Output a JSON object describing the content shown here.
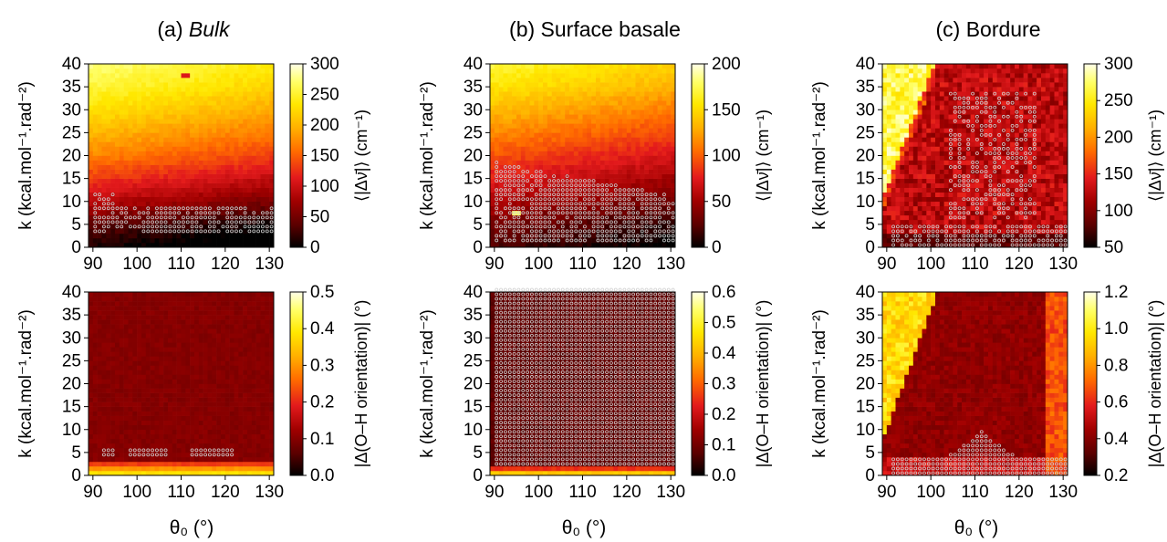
{
  "columns": [
    {
      "prefix": "(a) ",
      "name": "Bulk",
      "italic": true
    },
    {
      "prefix": "(b) ",
      "name": "Surface basale",
      "italic": false
    },
    {
      "prefix": "(c) ",
      "name": "Bordure",
      "italic": false
    }
  ],
  "axis_labels": {
    "x": "θ₀ (°)",
    "y": "k (kcal.mol⁻¹.rad⁻²)",
    "colorbar_top": "⟨|Δν̄|⟩ (cm⁻¹)",
    "colorbar_bottom": "|Δ(O–H orientation)| (°)"
  },
  "colors": {
    "colormap": [
      "#000000",
      "#5a0000",
      "#a00000",
      "#e31a1c",
      "#ff6a00",
      "#ffb000",
      "#ffe800",
      "#ffff66",
      "#ffffe8"
    ],
    "marker": "#cfcfcf"
  },
  "chart_data": [
    {
      "id": "a-top",
      "type": "heatmap",
      "title": "(a) Bulk",
      "xlabel": "θ₀ (°)",
      "ylabel": "k (kcal.mol⁻¹.rad⁻²)",
      "colorbar_label": "⟨|Δν̄|⟩ (cm⁻¹)",
      "xlim": [
        89,
        131
      ],
      "ylim": [
        0,
        40
      ],
      "x_ticks": [
        90,
        100,
        110,
        120,
        130
      ],
      "y_ticks": [
        0,
        5,
        10,
        15,
        20,
        25,
        30,
        35,
        40
      ],
      "color_range": [
        0,
        300
      ],
      "color_ticks": [
        0,
        50,
        100,
        150,
        200,
        250,
        300
      ],
      "value_grid": {
        "k_min": 0,
        "k_max": 40,
        "theta_min": 90,
        "theta_max": 130,
        "k_profile_value": [
          [
            0,
            10
          ],
          [
            5,
            40
          ],
          [
            10,
            90
          ],
          [
            15,
            130
          ],
          [
            20,
            170
          ],
          [
            25,
            200
          ],
          [
            30,
            230
          ],
          [
            35,
            255
          ],
          [
            40,
            275
          ]
        ],
        "theta_shift_per_degree": -0.9
      },
      "outlier": {
        "theta": 111,
        "k": 37.5,
        "value": 110
      },
      "markers": "circles for k ≤ 11 at θ₀ 90–94, k ≤ 8 at larger θ₀"
    },
    {
      "id": "b-top",
      "type": "heatmap",
      "title": "(b) Surface basale",
      "xlabel": "θ₀ (°)",
      "ylabel": "k (kcal.mol⁻¹.rad⁻²)",
      "colorbar_label": "⟨|Δν̄|⟩ (cm⁻¹)",
      "xlim": [
        89,
        131
      ],
      "ylim": [
        0,
        40
      ],
      "x_ticks": [
        90,
        100,
        110,
        120,
        130
      ],
      "y_ticks": [
        0,
        5,
        10,
        15,
        20,
        25,
        30,
        35,
        40
      ],
      "color_range": [
        0,
        200
      ],
      "color_ticks": [
        0,
        50,
        100,
        150,
        200
      ],
      "value_grid": {
        "k_min": 0,
        "k_max": 40,
        "theta_min": 90,
        "theta_max": 130,
        "k_profile_value": [
          [
            0,
            20
          ],
          [
            5,
            35
          ],
          [
            10,
            55
          ],
          [
            15,
            75
          ],
          [
            20,
            95
          ],
          [
            25,
            115
          ],
          [
            30,
            135
          ],
          [
            35,
            155
          ],
          [
            40,
            170
          ]
        ],
        "theta_shift_per_degree": -0.6
      },
      "outlier": {
        "theta": 95,
        "k": 7.5,
        "value": 180
      },
      "markers": "circles for k ≤ 18 at θ₀ 90–94, decreasing to k ≤ 11 at 130"
    },
    {
      "id": "c-top",
      "type": "heatmap",
      "title": "(c) Bordure",
      "xlabel": "θ₀ (°)",
      "ylabel": "k (kcal.mol⁻¹.rad⁻²)",
      "colorbar_label": "⟨|Δν̄|⟩ (cm⁻¹)",
      "xlim": [
        89,
        131
      ],
      "ylim": [
        0,
        40
      ],
      "x_ticks": [
        90,
        100,
        110,
        120,
        130
      ],
      "y_ticks": [
        0,
        5,
        10,
        15,
        20,
        25,
        30,
        35,
        40
      ],
      "color_range": [
        50,
        300
      ],
      "color_ticks": [
        50,
        100,
        150,
        200,
        250,
        300
      ],
      "regions": [
        {
          "description": "bright wedge upper-left",
          "value": 265
        },
        {
          "description": "red interior",
          "value": 120
        },
        {
          "description": "dark base",
          "value": 80
        }
      ],
      "markers": "scattered circles in the central wedge and along k ≤ 4"
    },
    {
      "id": "a-bottom",
      "type": "heatmap",
      "title": "(a) Bulk",
      "xlabel": "θ₀ (°)",
      "ylabel": "k (kcal.mol⁻¹.rad⁻²)",
      "colorbar_label": "|Δ(O–H orientation)| (°)",
      "xlim": [
        89,
        131
      ],
      "ylim": [
        0,
        40
      ],
      "x_ticks": [
        90,
        100,
        110,
        120,
        130
      ],
      "y_ticks": [
        0,
        5,
        10,
        15,
        20,
        25,
        30,
        35,
        40
      ],
      "color_range": [
        0.0,
        0.5
      ],
      "color_ticks": [
        0.0,
        0.1,
        0.2,
        0.3,
        0.4,
        0.5
      ],
      "bands": [
        [
          0,
          1,
          0.38
        ],
        [
          1,
          2,
          0.3
        ],
        [
          2,
          3,
          0.22
        ],
        [
          3,
          40,
          0.1
        ]
      ],
      "markers": "circles along k = 4–5"
    },
    {
      "id": "b-bottom",
      "type": "heatmap",
      "title": "(b) Surface basale",
      "xlabel": "θ₀ (°)",
      "ylabel": "k (kcal.mol⁻¹.rad⁻²)",
      "colorbar_label": "|Δ(O–H orientation)| (°)",
      "xlim": [
        89,
        131
      ],
      "ylim": [
        0,
        40
      ],
      "x_ticks": [
        90,
        100,
        110,
        120,
        130
      ],
      "y_ticks": [
        0,
        5,
        10,
        15,
        20,
        25,
        30,
        35,
        40
      ],
      "color_range": [
        0.0,
        0.6
      ],
      "color_ticks": [
        0.0,
        0.1,
        0.2,
        0.3,
        0.4,
        0.5,
        0.6
      ],
      "bands": [
        [
          0,
          1,
          0.42
        ],
        [
          1,
          2,
          0.25
        ],
        [
          2,
          40,
          0.08
        ]
      ],
      "markers": "circles covering nearly every cell with k ≥ 2"
    },
    {
      "id": "c-bottom",
      "type": "heatmap",
      "title": "(c) Bordure",
      "xlabel": "θ₀ (°)",
      "ylabel": "k (kcal.mol⁻¹.rad⁻²)",
      "colorbar_label": "|Δ(O–H orientation)| (°)",
      "xlim": [
        89,
        131
      ],
      "ylim": [
        0,
        40
      ],
      "x_ticks": [
        90,
        100,
        110,
        120,
        130
      ],
      "y_ticks": [
        0,
        5,
        10,
        15,
        20,
        25,
        30,
        35,
        40
      ],
      "color_range": [
        0.2,
        1.2
      ],
      "color_ticks": [
        0.2,
        0.4,
        0.6,
        0.8,
        1.0,
        1.2
      ],
      "regions": [
        {
          "description": "bright wedge upper-left",
          "value": 0.95
        },
        {
          "description": "dark red interior",
          "value": 0.4
        },
        {
          "description": "orange right edge",
          "value": 0.7
        }
      ],
      "markers": "circles along k ≤ 3 and a small mound up to k ≈ 9 near θ₀ 110–117"
    }
  ]
}
